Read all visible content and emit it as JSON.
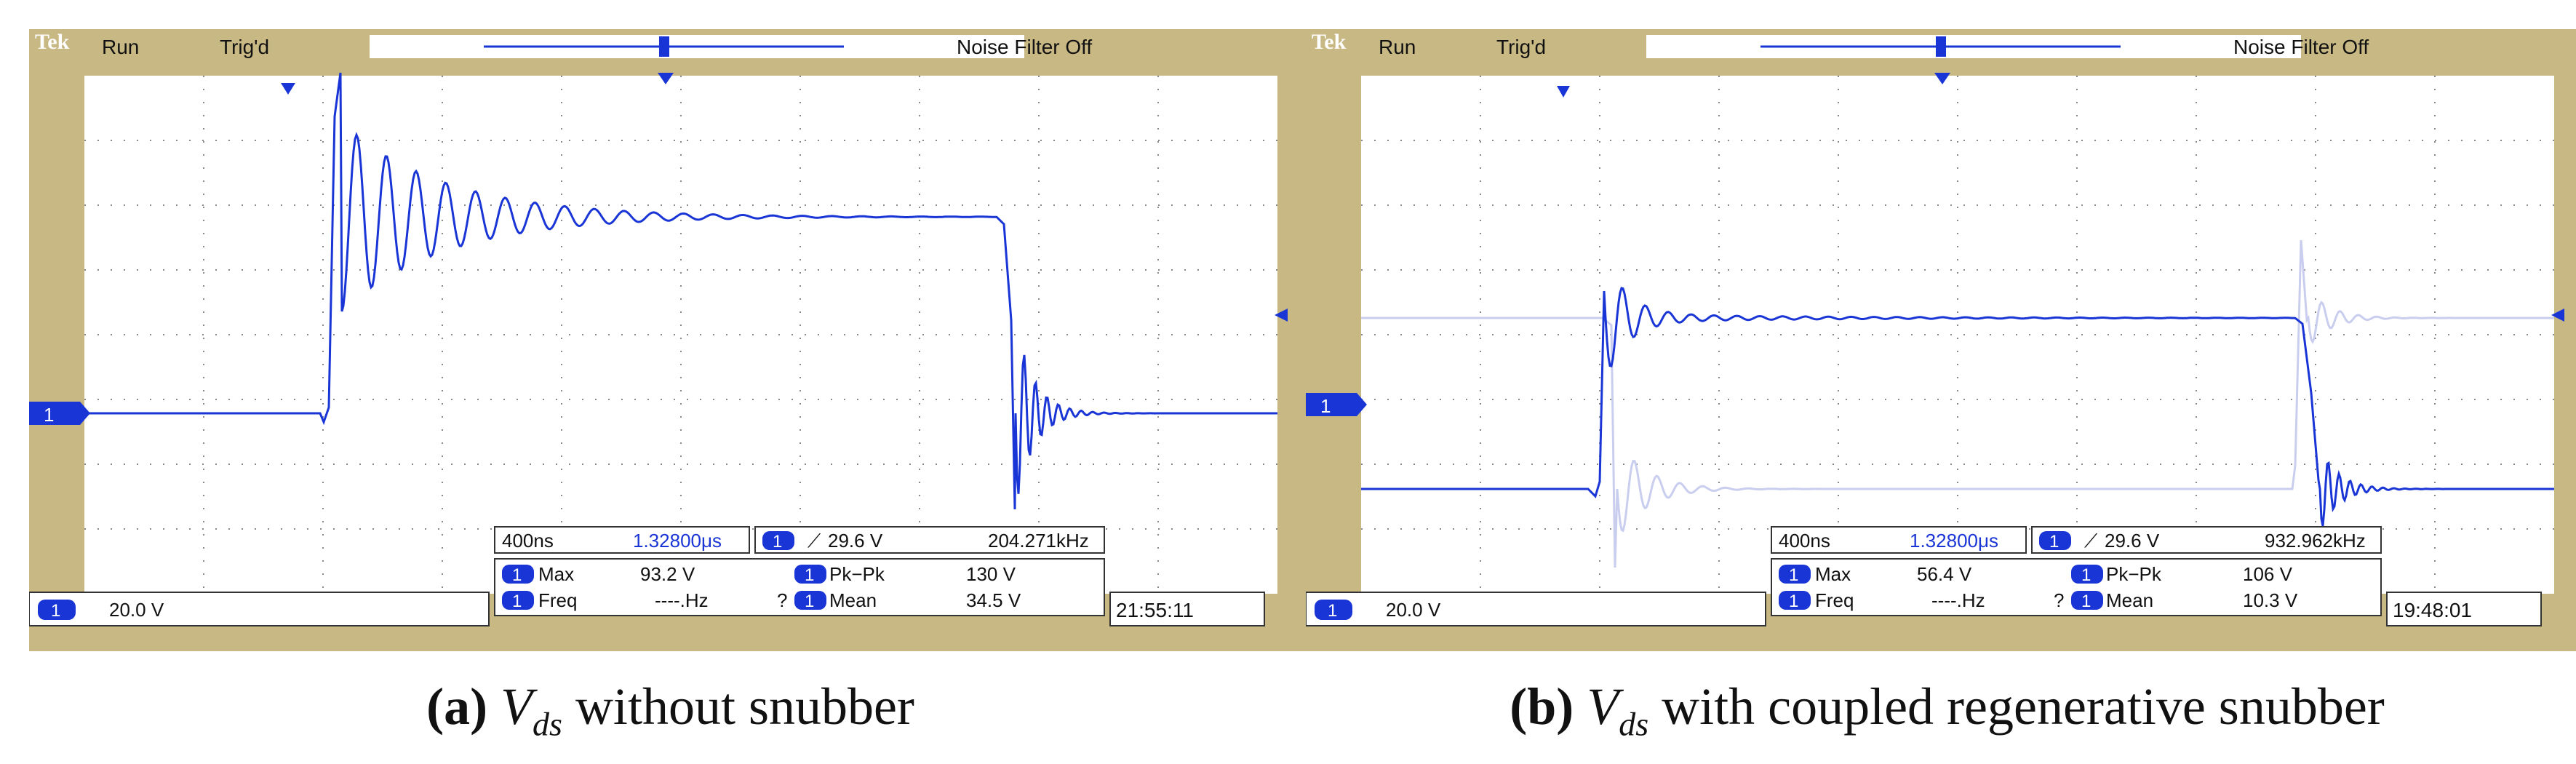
{
  "panels": [
    {
      "id": "a",
      "brand": "Tek",
      "run_label": "Run",
      "trig_label": "Trig'd",
      "noise_filter": "Noise Filter Off",
      "channel_marker": "1",
      "readouts": {
        "timebase": "400ns",
        "position": "1.32800μs",
        "trig_channel": "1",
        "trig_level": "29.6 V",
        "frequency": "204.271kHz",
        "max_label": "Max",
        "max_value": "93.2 V",
        "pkpk_label": "Pk−Pk",
        "pkpk_value": "130 V",
        "freq_label": "Freq",
        "freq_value": "----.Hz",
        "question": "?",
        "mean_label": "Mean",
        "mean_value": "34.5 V",
        "ch_scale": "20.0 V",
        "clock": "21:55:11"
      },
      "caption": {
        "tag": "(a)",
        "var": "V",
        "sub": "ds",
        "text": " without snubber"
      }
    },
    {
      "id": "b",
      "brand": "Tek",
      "run_label": "Run",
      "trig_label": "Trig'd",
      "noise_filter": "Noise Filter Off",
      "channel_marker": "1",
      "readouts": {
        "timebase": "400ns",
        "position": "1.32800μs",
        "trig_channel": "1",
        "trig_level": "29.6 V",
        "frequency": "932.962kHz",
        "max_label": "Max",
        "max_value": "56.4 V",
        "pkpk_label": "Pk−Pk",
        "pkpk_value": "106 V",
        "freq_label": "Freq",
        "freq_value": "----.Hz",
        "question": "?",
        "mean_label": "Mean",
        "mean_value": "10.3 V",
        "ch_scale": "20.0 V",
        "clock": "19:48:01"
      },
      "caption": {
        "tag": "(b)",
        "var": "V",
        "sub": "ds",
        "text": " with coupled regenerative snubber"
      }
    }
  ],
  "colors": {
    "frame": "#c8b884",
    "screen": "#ffffff",
    "trace": "#1a35d6",
    "ghost": "#c9ceef",
    "grid": "#8a8a8a",
    "text": "#111111"
  }
}
